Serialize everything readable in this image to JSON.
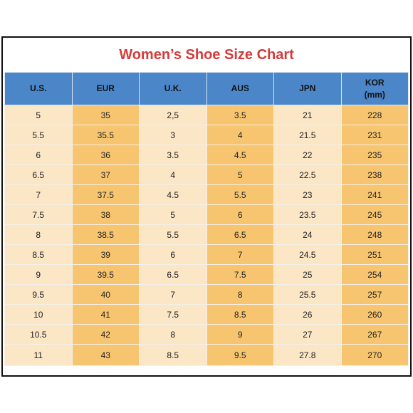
{
  "title": "Women’s Shoe Size Chart",
  "colors": {
    "title": "#d63a3a",
    "header_background": "#4a86c8",
    "light_column": "#fbe6c6",
    "dark_column": "#f7c56f"
  },
  "table": {
    "headers": [
      {
        "line1": "U.S.",
        "line2": ""
      },
      {
        "line1": "EUR",
        "line2": ""
      },
      {
        "line1": "U.K.",
        "line2": ""
      },
      {
        "line1": "AUS",
        "line2": ""
      },
      {
        "line1": "JPN",
        "line2": ""
      },
      {
        "line1": "KOR",
        "line2": "(mm)"
      }
    ],
    "rows": [
      [
        "5",
        "35",
        "2,5",
        "3.5",
        "21",
        "228"
      ],
      [
        "5.5",
        "35.5",
        "3",
        "4",
        "21.5",
        "231"
      ],
      [
        "6",
        "36",
        "3.5",
        "4.5",
        "22",
        "235"
      ],
      [
        "6.5",
        "37",
        "4",
        "5",
        "22.5",
        "238"
      ],
      [
        "7",
        "37.5",
        "4.5",
        "5.5",
        "23",
        "241"
      ],
      [
        "7.5",
        "38",
        "5",
        "6",
        "23.5",
        "245"
      ],
      [
        "8",
        "38.5",
        "5.5",
        "6.5",
        "24",
        "248"
      ],
      [
        "8.5",
        "39",
        "6",
        "7",
        "24.5",
        "251"
      ],
      [
        "9",
        "39.5",
        "6.5",
        "7.5",
        "25",
        "254"
      ],
      [
        "9.5",
        "40",
        "7",
        "8",
        "25.5",
        "257"
      ],
      [
        "10",
        "41",
        "7.5",
        "8.5",
        "26",
        "260"
      ],
      [
        "10.5",
        "42",
        "8",
        "9",
        "27",
        "267"
      ],
      [
        "11",
        "43",
        "8.5",
        "9.5",
        "27.8",
        "270"
      ]
    ]
  }
}
